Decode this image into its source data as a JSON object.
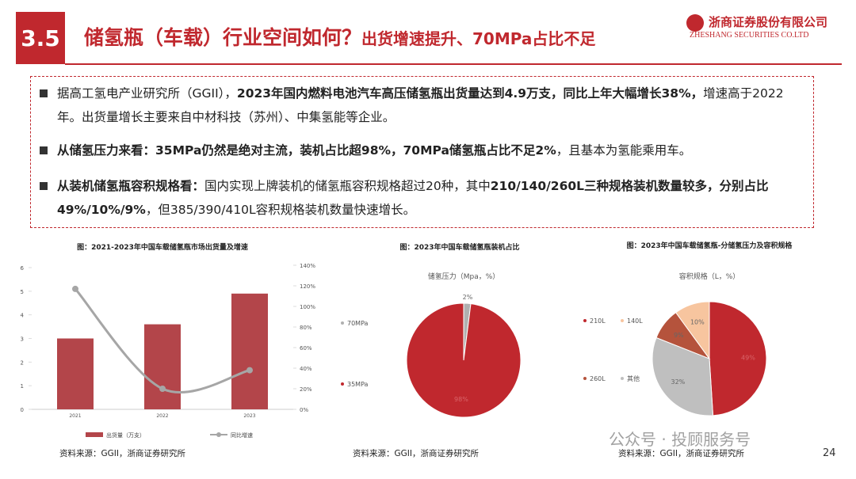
{
  "header": {
    "number": "3.5",
    "title": "储氢瓶（车载）行业空间如何？",
    "subtitle": "出货增速提升、70MPa占比不足",
    "company": "浙商证券股份有限公司",
    "company_en": "ZHESHANG SECURITIES CO.LTD"
  },
  "bullets": [
    [
      {
        "text": "据高工氢电产业研究所（GGII），",
        "bold": false
      },
      {
        "text": "2023年国内燃料电池汽车高压储氢瓶出货量达到4.9万支，同比上年大幅增长38%，",
        "bold": true
      },
      {
        "text": "增速高于2022年。出货量增长主要来自中材科技（苏州）、中集氢能等企业。",
        "bold": false
      }
    ],
    [
      {
        "text": "从储氢压力来看：",
        "bold": true
      },
      {
        "text": "35MPa仍然是绝对主流，装机占比超98%，70MPa储氢瓶占比不足2%",
        "bold": true
      },
      {
        "text": "，且基本为氢能乘用车。",
        "bold": false
      }
    ],
    [
      {
        "text": "从装机储氢瓶容积规格看：",
        "bold": true
      },
      {
        "text": "国内实现上牌装机的储氢瓶容积规格超过20种，其中",
        "bold": false
      },
      {
        "text": "210/140/260L三种规格装机数量较多，分别占比49%/10%/9%",
        "bold": true
      },
      {
        "text": "，但385/390/410L容积规格装机数量快速增长。",
        "bold": false
      }
    ]
  ],
  "chart_data": [
    {
      "type": "bar",
      "title": "图：2021-2023年中国车载储氢瓶市场出货量及增速",
      "source": "资料来源：GGII，浙商证券研究所",
      "categories": [
        "2021",
        "2022",
        "2023"
      ],
      "series": [
        {
          "name": "出货量（万支）",
          "color": "#b3454a",
          "values": [
            3,
            3.6,
            4.9
          ]
        },
        {
          "name": "同比增速",
          "color": "#a6a6a6",
          "values": [
            117,
            20,
            38
          ],
          "axis": "y2",
          "mark": "line"
        }
      ],
      "ylim": [
        0,
        6
      ],
      "yticks": [
        0,
        1,
        2,
        3,
        4,
        5,
        6
      ],
      "y2lim": [
        0,
        140
      ],
      "y2ticks": [
        {
          "value": 0,
          "label": "0%"
        },
        {
          "value": 20,
          "label": "20%"
        },
        {
          "value": 40,
          "label": "40%"
        },
        {
          "value": 60,
          "label": "60%"
        },
        {
          "value": 80,
          "label": "80%"
        },
        {
          "value": 100,
          "label": "100%"
        },
        {
          "value": 120,
          "label": "120%"
        },
        {
          "value": 140,
          "label": "140%"
        }
      ]
    },
    {
      "type": "pie",
      "title": "图：2023年中国车载储氢瓶装机占比",
      "subtitle": "储氢压力（Mpa，%）",
      "source": "资料来源：GGII，浙商证券研究所",
      "categories": [
        "70MPa",
        "35MPa"
      ],
      "values": [
        2,
        98
      ],
      "value_labels": [
        "2%",
        "98%"
      ],
      "colors": [
        "#b0b0b0",
        "#c0282e"
      ]
    },
    {
      "type": "pie",
      "title": "图：2023年中国车载储氢瓶-分储氢压力及容积规格",
      "subtitle": "容积规格（L，%）",
      "source": "资料来源：GGII，浙商证券研究所",
      "categories": [
        "210L",
        "其他",
        "260L",
        "140L"
      ],
      "values": [
        49,
        32,
        9,
        10
      ],
      "value_labels": [
        "49%",
        "32%",
        "9%",
        "10%"
      ],
      "colors": [
        "#c0282e",
        "#bfbfbf",
        "#b5533c",
        "#f7c59f"
      ]
    }
  ],
  "footer": {
    "page": "24",
    "watermark": "公众号 · 投顾服务号"
  }
}
